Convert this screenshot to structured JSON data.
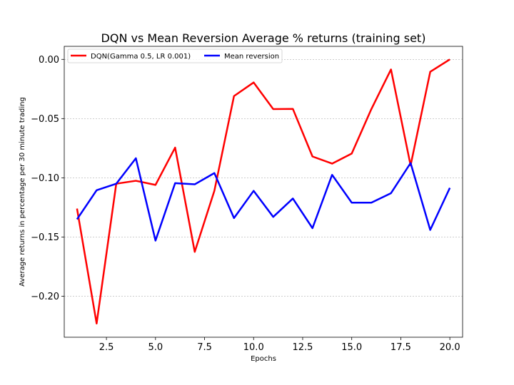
{
  "chart_data": {
    "type": "line",
    "title": "DQN vs Mean Reversion Average % returns (training set)",
    "xlabel": "Epochs",
    "ylabel": "Average returns in percentage per 30 minute trading",
    "xlim": [
      0.35,
      20.65
    ],
    "ylim": [
      -0.2346,
      0.011
    ],
    "x_ticks": [
      2.5,
      5.0,
      7.5,
      10.0,
      12.5,
      15.0,
      17.5,
      20.0
    ],
    "x_tick_labels": [
      "2.5",
      "5.0",
      "7.5",
      "10.0",
      "12.5",
      "15.0",
      "17.5",
      "20.0"
    ],
    "y_ticks": [
      0.0,
      -0.05,
      -0.1,
      -0.15,
      -0.2
    ],
    "y_tick_labels": [
      "0.00",
      "−0.05",
      "−0.10",
      "−0.15",
      "−0.20"
    ],
    "grid": "horizontal",
    "legend_position": "top-left",
    "x": [
      1,
      2,
      3,
      4,
      5,
      6,
      7,
      8,
      9,
      10,
      11,
      12,
      13,
      14,
      15,
      16,
      17,
      18,
      19,
      20
    ],
    "series": [
      {
        "name": "DQN(Gamma 0.5, LR 0.001)",
        "color": "#ff0000",
        "values": [
          -0.126,
          -0.223,
          -0.105,
          -0.1025,
          -0.106,
          -0.0745,
          -0.1625,
          -0.111,
          -0.031,
          -0.0195,
          -0.042,
          -0.0418,
          -0.082,
          -0.088,
          -0.0795,
          -0.042,
          -0.0085,
          -0.0895,
          -0.0105,
          0.0
        ]
      },
      {
        "name": "Mean reversion",
        "color": "#0000ff",
        "values": [
          -0.135,
          -0.1105,
          -0.105,
          -0.0835,
          -0.153,
          -0.1045,
          -0.1055,
          -0.096,
          -0.134,
          -0.111,
          -0.133,
          -0.1175,
          -0.1425,
          -0.0975,
          -0.121,
          -0.121,
          -0.113,
          -0.0875,
          -0.144,
          -0.1085
        ]
      }
    ]
  }
}
